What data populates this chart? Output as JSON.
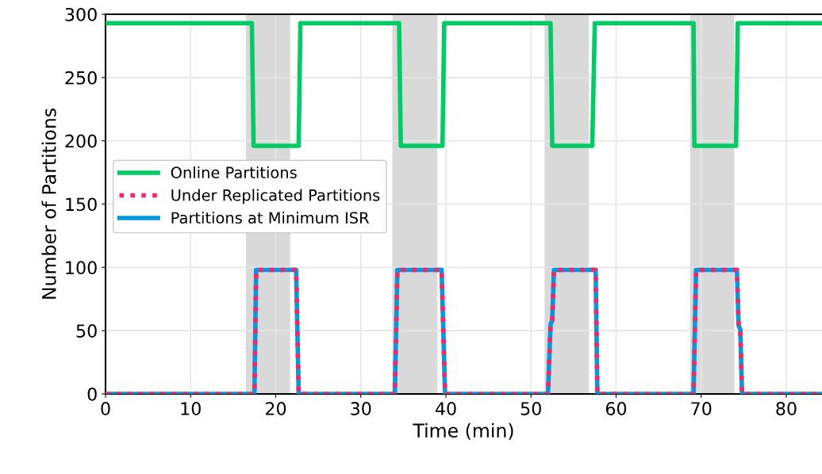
{
  "chart_data": {
    "type": "line",
    "xlabel": "Time (min)",
    "ylabel": "Number of Partitions",
    "xlim": [
      0,
      84.2
    ],
    "ylim": [
      0,
      300
    ],
    "xticks": [
      0,
      10,
      20,
      30,
      40,
      50,
      60,
      70,
      80
    ],
    "yticks": [
      0,
      50,
      100,
      150,
      200,
      250,
      300
    ],
    "grid": true,
    "legend": "left",
    "marker": "none",
    "bands": [
      {
        "axis": "x",
        "from": 16.5,
        "to": 21.7,
        "color": "#d9d9d9"
      },
      {
        "axis": "x",
        "from": 33.7,
        "to": 39.0,
        "color": "#d9d9d9"
      },
      {
        "axis": "x",
        "from": 51.6,
        "to": 56.8,
        "color": "#d9d9d9"
      },
      {
        "axis": "x",
        "from": 68.7,
        "to": 73.9,
        "color": "#d9d9d9"
      }
    ],
    "series": [
      {
        "name": "Online Partitions",
        "color": "#00cc66",
        "line_style": "solid",
        "x": [
          0,
          17.2,
          17.4,
          22.7,
          22.9,
          34.5,
          34.7,
          39.6,
          39.8,
          52.3,
          52.5,
          57.2,
          57.5,
          69.1,
          69.2,
          74.1,
          74.3,
          84.2
        ],
        "values": [
          293,
          293,
          196,
          196,
          293,
          293,
          196,
          196,
          293,
          293,
          196,
          196,
          293,
          293,
          196,
          196,
          293,
          293
        ]
      },
      {
        "name": "Under Replicated Partitions",
        "color": "#ff2266",
        "line_style": "dotted",
        "x": [
          0,
          17.5,
          17.7,
          22.4,
          22.7,
          34.0,
          34.3,
          39.5,
          39.9,
          52.0,
          52.3,
          52.5,
          52.7,
          57.6,
          57.8,
          69.1,
          69.4,
          74.2,
          74.4,
          74.6,
          74.8,
          84.2
        ],
        "values": [
          0,
          0,
          98,
          98,
          0,
          0,
          98,
          98,
          0,
          0,
          55,
          58,
          98,
          98,
          0,
          0,
          98,
          98,
          54,
          51,
          0,
          0
        ]
      },
      {
        "name": "Partitions at Minimum ISR",
        "color": "#0099dd",
        "line_style": "solid",
        "x": [
          0,
          17.5,
          17.7,
          22.4,
          22.7,
          34.0,
          34.3,
          39.5,
          39.9,
          52.0,
          52.3,
          52.5,
          52.7,
          57.6,
          57.8,
          69.1,
          69.4,
          74.2,
          74.4,
          74.6,
          74.8,
          84.2
        ],
        "values": [
          0,
          0,
          98,
          98,
          0,
          0,
          98,
          98,
          0,
          0,
          55,
          58,
          98,
          98,
          0,
          0,
          98,
          98,
          54,
          51,
          0,
          0
        ]
      }
    ]
  }
}
